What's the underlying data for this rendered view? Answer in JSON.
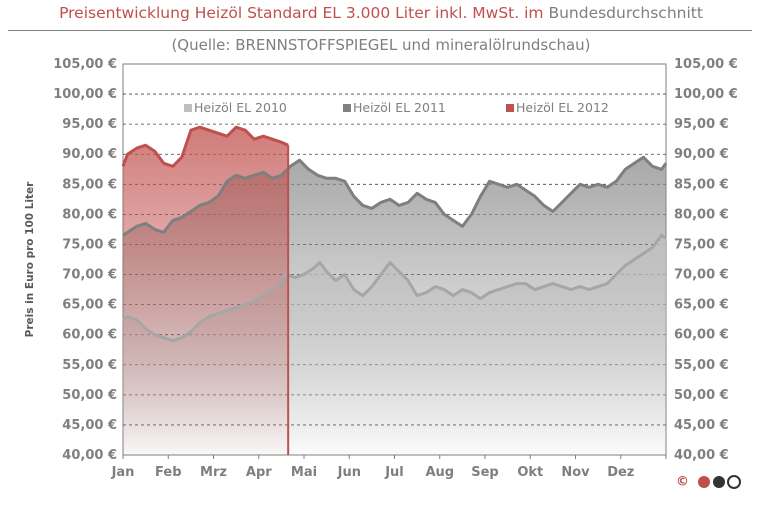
{
  "title": {
    "part1": "Preisentwicklung Heizöl Standard EL 3.000 Liter inkl. MwSt. im ",
    "part2": "Bundesdurchschnitt"
  },
  "subtitle": "(Quelle: BRENNSTOFFSPIEGEL  und mineralölrundschau)",
  "logo_text": "©",
  "chart_data": {
    "type": "area",
    "ylabel": "Preis in Euro pro 100 Liter",
    "ylim": [
      40,
      105
    ],
    "y_ticks": [
      40,
      45,
      50,
      55,
      60,
      65,
      70,
      75,
      80,
      85,
      90,
      95,
      100,
      105
    ],
    "y_tick_suffix": ",00 €",
    "xlim": [
      0,
      12
    ],
    "categories": [
      "Jan",
      "Feb",
      "Mrz",
      "Apr",
      "Mai",
      "Jun",
      "Jul",
      "Aug",
      "Sep",
      "Okt",
      "Nov",
      "Dez"
    ],
    "grid": "horizontal dashed",
    "legend_position": "top",
    "series": [
      {
        "name": "Heizöl EL 2010",
        "color": "#bfbfbf",
        "x": [
          0,
          0.1,
          0.3,
          0.5,
          0.7,
          0.9,
          1.1,
          1.3,
          1.5,
          1.7,
          1.9,
          2.1,
          2.3,
          2.5,
          2.7,
          2.9,
          3.1,
          3.3,
          3.5,
          3.6,
          3.8,
          4.0,
          4.2,
          4.35,
          4.5,
          4.7,
          4.9,
          5.1,
          5.3,
          5.5,
          5.7,
          5.9,
          6.1,
          6.3,
          6.5,
          6.7,
          6.9,
          7.1,
          7.3,
          7.5,
          7.7,
          7.9,
          8.1,
          8.3,
          8.5,
          8.7,
          8.9,
          9.1,
          9.3,
          9.5,
          9.7,
          9.9,
          10.1,
          10.3,
          10.5,
          10.7,
          10.9,
          11.1,
          11.3,
          11.5,
          11.7,
          11.9,
          12.0
        ],
        "values": [
          62.5,
          63.0,
          62.5,
          61.0,
          60.0,
          59.5,
          59.0,
          59.5,
          60.5,
          62.0,
          63.0,
          63.5,
          64.0,
          64.5,
          65.0,
          65.5,
          66.5,
          67.5,
          68.5,
          70.0,
          69.5,
          70.0,
          71.0,
          72.0,
          70.5,
          69.0,
          70.0,
          67.5,
          66.5,
          68.0,
          70.0,
          72.0,
          70.5,
          69.0,
          66.5,
          67.0,
          68.0,
          67.5,
          66.5,
          67.5,
          67.0,
          66.0,
          67.0,
          67.5,
          68.0,
          68.5,
          68.5,
          67.5,
          68.0,
          68.5,
          68.0,
          67.5,
          68.0,
          67.5,
          68.0,
          68.5,
          70.0,
          71.5,
          72.5,
          73.5,
          74.5,
          76.5,
          76.0
        ]
      },
      {
        "name": "Heizöl EL 2011",
        "color": "#808080",
        "x": [
          0,
          0.1,
          0.3,
          0.5,
          0.7,
          0.9,
          1.1,
          1.3,
          1.5,
          1.7,
          1.9,
          2.1,
          2.3,
          2.5,
          2.7,
          2.9,
          3.1,
          3.3,
          3.5,
          3.7,
          3.9,
          4.1,
          4.3,
          4.5,
          4.7,
          4.9,
          5.1,
          5.3,
          5.5,
          5.7,
          5.9,
          6.1,
          6.3,
          6.5,
          6.7,
          6.9,
          7.1,
          7.3,
          7.5,
          7.7,
          7.9,
          8.1,
          8.3,
          8.5,
          8.7,
          8.9,
          9.1,
          9.3,
          9.5,
          9.7,
          9.9,
          10.1,
          10.3,
          10.5,
          10.7,
          10.9,
          11.1,
          11.3,
          11.5,
          11.7,
          11.9,
          12.0
        ],
        "values": [
          76.5,
          77.0,
          78.0,
          78.5,
          77.5,
          77.0,
          79.0,
          79.5,
          80.5,
          81.5,
          82.0,
          83.0,
          85.5,
          86.5,
          86.0,
          86.5,
          87.0,
          86.0,
          86.5,
          88.0,
          89.0,
          87.5,
          86.5,
          86.0,
          86.0,
          85.5,
          83.0,
          81.5,
          81.0,
          82.0,
          82.5,
          81.5,
          82.0,
          83.5,
          82.5,
          82.0,
          80.0,
          79.0,
          78.0,
          80.0,
          83.0,
          85.5,
          85.0,
          84.5,
          85.0,
          84.0,
          83.0,
          81.5,
          80.5,
          82.0,
          83.5,
          85.0,
          84.5,
          85.0,
          84.5,
          85.5,
          87.5,
          88.5,
          89.5,
          88.0,
          87.5,
          88.5
        ]
      },
      {
        "name": "Heizöl EL 2012",
        "color": "#c0504d",
        "x": [
          0,
          0.1,
          0.3,
          0.5,
          0.7,
          0.9,
          1.1,
          1.3,
          1.5,
          1.7,
          1.9,
          2.1,
          2.3,
          2.5,
          2.7,
          2.9,
          3.1,
          3.3,
          3.5,
          3.65
        ],
        "values": [
          88.0,
          90.0,
          91.0,
          91.5,
          90.5,
          88.5,
          88.0,
          89.5,
          94.0,
          94.5,
          94.0,
          93.5,
          93.0,
          94.5,
          94.0,
          92.5,
          93.0,
          92.5,
          92.0,
          91.5
        ]
      }
    ]
  }
}
